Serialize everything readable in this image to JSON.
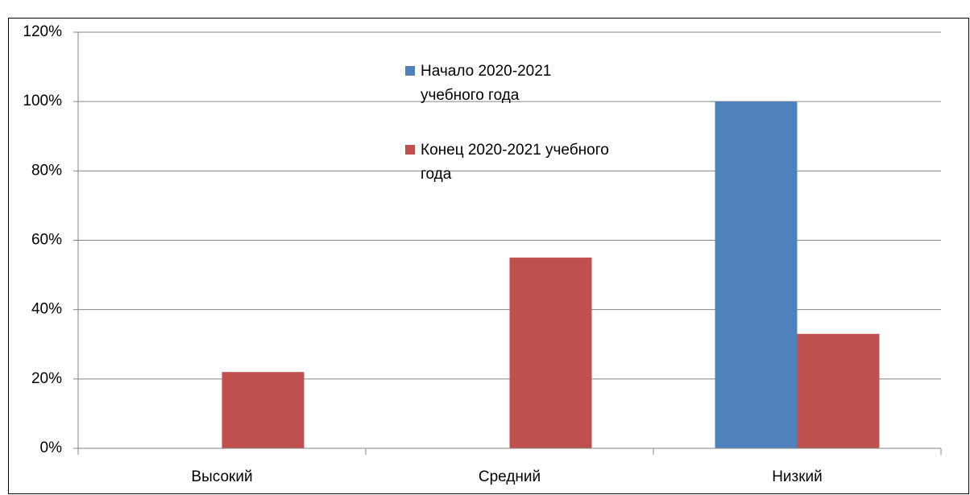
{
  "chart_data": {
    "type": "bar",
    "categories": [
      "Высокий",
      "Средний",
      "Низкий"
    ],
    "series": [
      {
        "name": "Начало  2020-2021\nучебного  года",
        "color": "#4f81bd",
        "values": [
          0,
          0,
          100
        ]
      },
      {
        "name": "Конец  2020-2021 учебного\nгода",
        "color": "#c0504d",
        "values": [
          22,
          55,
          33
        ]
      }
    ],
    "ylim": [
      0,
      120
    ],
    "yticks": [
      {
        "value": 0,
        "label": "0%"
      },
      {
        "value": 20,
        "label": "20%"
      },
      {
        "value": 40,
        "label": "40%"
      },
      {
        "value": 60,
        "label": "60%"
      },
      {
        "value": 80,
        "label": "80%"
      },
      {
        "value": 100,
        "label": "100%"
      },
      {
        "value": 120,
        "label": "120%"
      }
    ],
    "grid": true
  }
}
